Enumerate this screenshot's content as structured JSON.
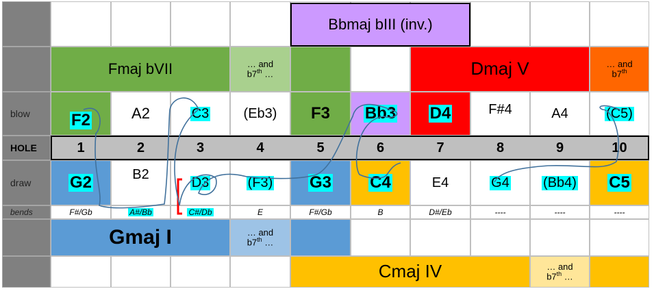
{
  "rows": {
    "blow": "blow",
    "hole": "HOLE",
    "draw": "draw",
    "bends": "bends"
  },
  "chords": {
    "bIII": "Bbmaj bIII (inv.)",
    "bVII": "Fmaj bVII",
    "bVII_and_prefix": "… and",
    "bVII_and_note": "b7",
    "bVII_and_sup": "th",
    "bVII_and_suffix": " …",
    "V": "Dmaj V",
    "V_and_prefix": "… and",
    "V_and_note": "b7",
    "V_and_sup": "th",
    "I": "Gmaj I",
    "I_and_prefix": "… and",
    "I_and_note": "b7",
    "I_and_sup": "th",
    "I_and_suffix": " …",
    "IV": "Cmaj IV",
    "IV_and_prefix": "… and",
    "IV_and_note": "b7",
    "IV_and_sup": "th",
    "IV_and_suffix": " …"
  },
  "blow": [
    "F2",
    "A2",
    "C3",
    "(Eb3)",
    "F3",
    "Bb3",
    "D4",
    "F#4",
    "A4",
    "(C5)"
  ],
  "holes": [
    "1",
    "2",
    "3",
    "4",
    "5",
    "6",
    "7",
    "8",
    "9",
    "10"
  ],
  "draw": [
    "G2",
    "B2",
    "D3",
    "(F3)",
    "G3",
    "C4",
    "E4",
    "G4",
    "(Bb4)",
    "C5"
  ],
  "bends": [
    "F#/Gb",
    "A#/Bb",
    "C#/Db",
    "E",
    "F#/Gb",
    "B",
    "D#/Eb",
    "----",
    "----",
    "----"
  ],
  "colors": {
    "purple": "#cc99ff",
    "green": "#70ad47",
    "light_green": "#a9d08e",
    "red": "#ff0000",
    "orange": "#ff6600",
    "blue": "#5b9bd5",
    "light_blue": "#9dc3e6",
    "gold": "#ffc000",
    "light_gold": "#ffe699",
    "hole_row": "#bfbfbf",
    "highlight": "#00ffff",
    "path": "#41719c"
  }
}
